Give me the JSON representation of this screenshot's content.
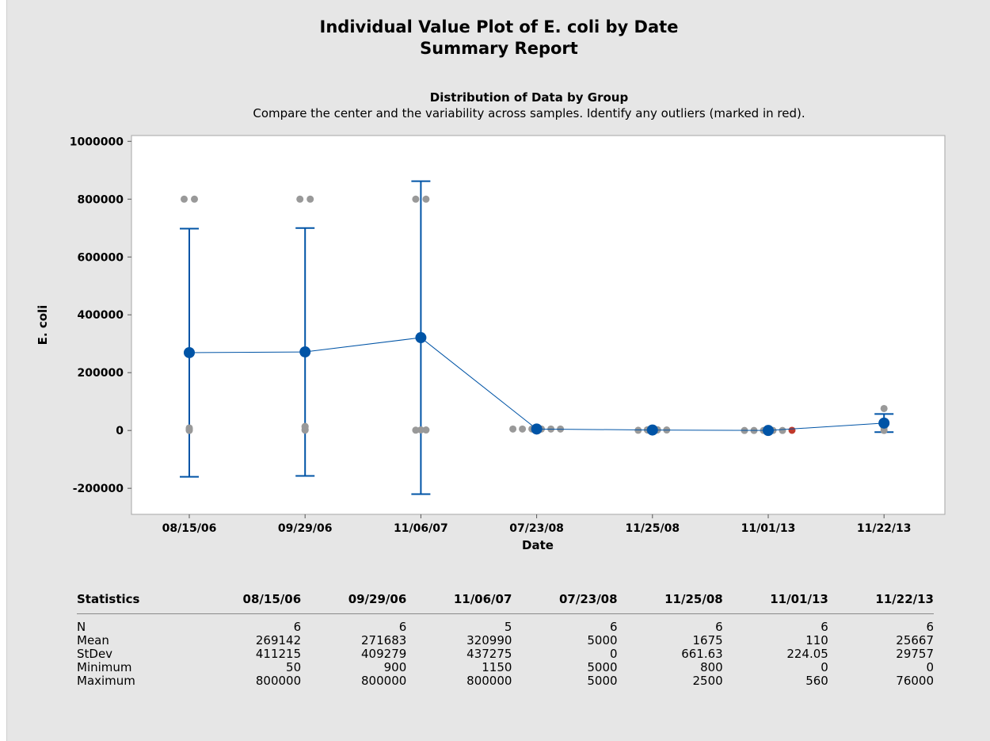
{
  "report": {
    "title": "Individual Value Plot of E. coli by Date",
    "subtitle": "Summary Report",
    "section_title": "Distribution of Data by Group",
    "section_description": "Compare the center and the variability across samples. Identify any outliers (marked in red)."
  },
  "colors": {
    "mean_marker": "#0054a6",
    "interval": "#0054a6",
    "data_points": "#999999",
    "outlier": "#c0392b"
  },
  "chart_data": {
    "type": "scatter",
    "title": "Distribution of Data by Group",
    "xlabel": "Date",
    "ylabel": "E. coli",
    "categories": [
      "08/15/06",
      "09/29/06",
      "11/06/07",
      "07/23/08",
      "11/25/08",
      "11/01/13",
      "11/22/13"
    ],
    "y_ticks": [
      "-200000",
      "0",
      "200000",
      "400000",
      "600000",
      "800000",
      "1000000"
    ],
    "y_tick_values": [
      -200000,
      0,
      200000,
      400000,
      600000,
      800000,
      1000000
    ],
    "ylim": [
      -290000,
      1020000
    ],
    "grid": false,
    "means": [
      269142,
      271683,
      320990,
      5000,
      1675,
      110,
      25667
    ],
    "interval_upper": [
      698000,
      700000,
      862000,
      5000,
      2300,
      350,
      56900
    ],
    "interval_lower": [
      -160000,
      -157000,
      -220000,
      5000,
      1050,
      -130,
      -5600
    ],
    "series": [
      {
        "category": "08/15/06",
        "values": [
          800000,
          800000,
          50,
          3000,
          6000,
          8800
        ]
      },
      {
        "category": "09/29/06",
        "values": [
          800000,
          800000,
          900,
          3000,
          12000,
          14200
        ]
      },
      {
        "category": "11/06/07",
        "values": [
          800000,
          800000,
          1150,
          1800,
          2000
        ]
      },
      {
        "category": "07/23/08",
        "values": [
          5000,
          5000,
          5000,
          5000,
          5000,
          5000
        ]
      },
      {
        "category": "11/25/08",
        "values": [
          800,
          1200,
          1500,
          1800,
          2250,
          2500
        ]
      },
      {
        "category": "11/01/13",
        "values": [
          0,
          0,
          0,
          0,
          100,
          560
        ]
      },
      {
        "category": "11/22/13",
        "values": [
          0,
          10000,
          12000,
          30000,
          26000,
          76000
        ]
      }
    ],
    "outliers": [
      {
        "category": "11/01/13",
        "value": 560
      }
    ]
  },
  "statistics": {
    "header": "Statistics",
    "columns": [
      "08/15/06",
      "09/29/06",
      "11/06/07",
      "07/23/08",
      "11/25/08",
      "11/01/13",
      "11/22/13"
    ],
    "rows": [
      {
        "label": "N",
        "values": [
          "6",
          "6",
          "5",
          "6",
          "6",
          "6",
          "6"
        ]
      },
      {
        "label": "Mean",
        "values": [
          "269142",
          "271683",
          "320990",
          "5000",
          "1675",
          "110",
          "25667"
        ]
      },
      {
        "label": "StDev",
        "values": [
          "411215",
          "409279",
          "437275",
          "0",
          "661.63",
          "224.05",
          "29757"
        ]
      },
      {
        "label": "Minimum",
        "values": [
          "50",
          "900",
          "1150",
          "5000",
          "800",
          "0",
          "0"
        ]
      },
      {
        "label": "Maximum",
        "values": [
          "800000",
          "800000",
          "800000",
          "5000",
          "2500",
          "560",
          "76000"
        ]
      }
    ]
  }
}
